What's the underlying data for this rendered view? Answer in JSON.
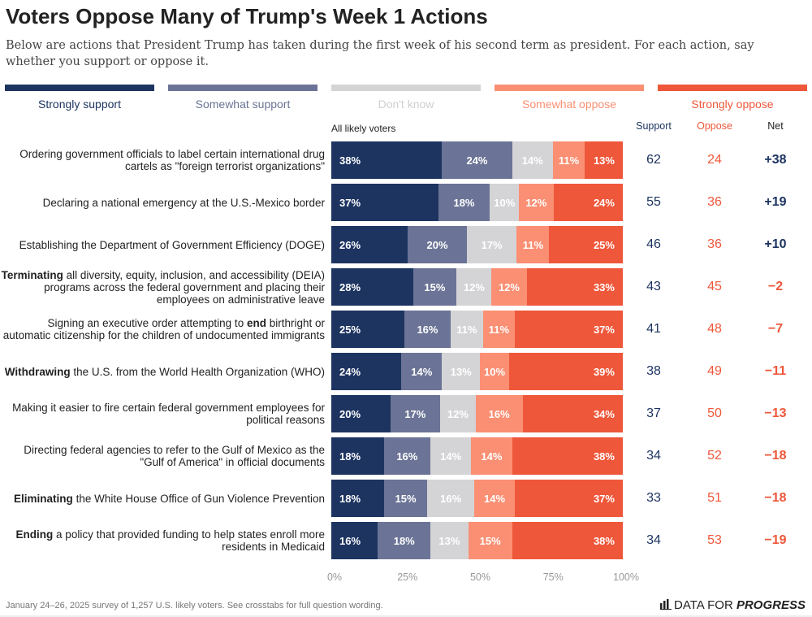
{
  "title": "Voters Oppose Many of Trump's Week 1 Actions",
  "subtitle": "Below are actions that President Trump has taken during the first week of his second term as president. For each action, say whether you support or oppose it.",
  "subgroup": "All likely voters",
  "footer": "January 24–26, 2025 survey of 1,257 U.S. likely voters. See crosstabs for full question wording.",
  "logo": {
    "text_regular": "DATA FOR ",
    "text_bold": "PROGRESS",
    "icon": "bar-chart-icon"
  },
  "columns": {
    "support": "Support",
    "oppose": "Oppose",
    "net": "Net"
  },
  "colors": {
    "strongly_support": "#1d3461",
    "somewhat_support": "#6b7496",
    "dont_know": "#d4d4d6",
    "somewhat_oppose": "#fa8f73",
    "strongly_oppose": "#ee573a",
    "support_text": "#1d3461",
    "oppose_text": "#ee573a",
    "legend_dont_know_text": "#cfcfd1"
  },
  "chart_data": {
    "type": "bar",
    "orientation": "horizontal-stacked",
    "series": [
      {
        "name": "Strongly support",
        "key": "strongly_support"
      },
      {
        "name": "Somewhat support",
        "key": "somewhat_support"
      },
      {
        "name": "Don't know",
        "key": "dont_know"
      },
      {
        "name": "Somewhat oppose",
        "key": "somewhat_oppose"
      },
      {
        "name": "Strongly oppose",
        "key": "strongly_oppose"
      }
    ],
    "xlim": [
      0,
      100
    ],
    "xticks": [
      "0%",
      "25%",
      "50%",
      "75%",
      "100%"
    ],
    "legend_placement": "top",
    "rows": [
      {
        "label": [
          {
            "t": "Ordering government officials to label certain international drug cartels as \"foreign terrorist organizations\"",
            "b": false
          }
        ],
        "values": [
          38,
          24,
          14,
          11,
          13
        ],
        "support": "62",
        "oppose": "24",
        "net": "+38"
      },
      {
        "label": [
          {
            "t": "Declaring a national emergency at the U.S.-Mexico border",
            "b": false
          }
        ],
        "values": [
          37,
          18,
          10,
          12,
          24
        ],
        "support": "55",
        "oppose": "36",
        "net": "+19"
      },
      {
        "label": [
          {
            "t": "Establishing the Department of Government Efficiency (DOGE)",
            "b": false
          }
        ],
        "values": [
          26,
          20,
          17,
          11,
          25
        ],
        "support": "46",
        "oppose": "36",
        "net": "+10"
      },
      {
        "label": [
          {
            "t": "Terminating",
            "b": true
          },
          {
            "t": " all diversity, equity, inclusion, and accessibility (DEIA) programs across the federal government and placing their employees on administrative leave",
            "b": false
          }
        ],
        "values": [
          28,
          15,
          12,
          12,
          33
        ],
        "support": "43",
        "oppose": "45",
        "net": "−2"
      },
      {
        "label": [
          {
            "t": "Signing an executive order attempting to ",
            "b": false
          },
          {
            "t": "end",
            "b": true
          },
          {
            "t": " birthright or automatic citizenship for the children of undocumented immigrants",
            "b": false
          }
        ],
        "values": [
          25,
          16,
          11,
          11,
          37
        ],
        "support": "41",
        "oppose": "48",
        "net": "−7"
      },
      {
        "label": [
          {
            "t": "Withdrawing",
            "b": true
          },
          {
            "t": " the U.S. from the World Health Organization (WHO)",
            "b": false
          }
        ],
        "values": [
          24,
          14,
          13,
          10,
          39
        ],
        "support": "38",
        "oppose": "49",
        "net": "−11"
      },
      {
        "label": [
          {
            "t": "Making it easier to fire certain federal government employees for political reasons",
            "b": false
          }
        ],
        "values": [
          20,
          17,
          12,
          16,
          34
        ],
        "support": "37",
        "oppose": "50",
        "net": "−13"
      },
      {
        "label": [
          {
            "t": "Directing federal agencies to refer to the Gulf of Mexico as the \"Gulf of America\" in official documents",
            "b": false
          }
        ],
        "values": [
          18,
          16,
          14,
          14,
          38
        ],
        "support": "34",
        "oppose": "52",
        "net": "−18"
      },
      {
        "label": [
          {
            "t": "Eliminating",
            "b": true
          },
          {
            "t": " the White House Office of Gun Violence Prevention",
            "b": false
          }
        ],
        "values": [
          18,
          15,
          16,
          14,
          37
        ],
        "support": "33",
        "oppose": "51",
        "net": "−18"
      },
      {
        "label": [
          {
            "t": "Ending",
            "b": true
          },
          {
            "t": " a policy that provided funding to help states enroll more residents in Medicaid",
            "b": false
          }
        ],
        "values": [
          16,
          18,
          13,
          15,
          38
        ],
        "support": "34",
        "oppose": "53",
        "net": "−19"
      }
    ]
  }
}
